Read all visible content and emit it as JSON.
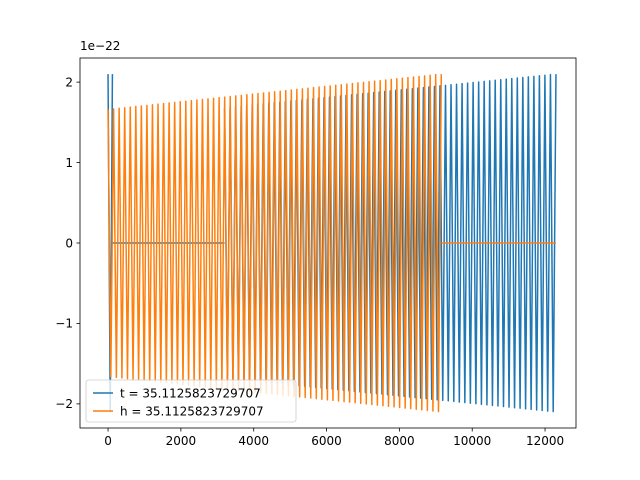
{
  "chart_data": {
    "type": "line",
    "offset_label": "1e−22",
    "xlim": [
      -770,
      12850
    ],
    "ylim": [
      -2.3,
      2.3
    ],
    "x_ticks": [
      0,
      2000,
      4000,
      6000,
      8000,
      10000,
      12000
    ],
    "x_tick_labels": [
      "0",
      "2000",
      "4000",
      "6000",
      "8000",
      "10000",
      "12000"
    ],
    "y_ticks": [
      -2,
      -1,
      0,
      1,
      2
    ],
    "y_tick_labels": [
      "−2",
      "−1",
      "0",
      "1",
      "2"
    ],
    "legend_position": "lower-left",
    "series": [
      {
        "name": "t = 35.1125823729707",
        "color": "#1f77b4",
        "segments": [
          {
            "kind": "oscillation",
            "x_start": 0,
            "x_end": 120,
            "amp_start": 2.1,
            "amp_end": 2.1,
            "cycles": 1
          },
          {
            "kind": "flat",
            "x_start": 120,
            "x_end": 3200,
            "value": 0
          },
          {
            "kind": "oscillation",
            "x_start": 3200,
            "x_end": 12300,
            "amp_start": 1.68,
            "amp_end": 2.1,
            "cycles": 60
          }
        ]
      },
      {
        "name": "h = 35.1125823729707",
        "color": "#ff7f0e",
        "segments": [
          {
            "kind": "oscillation",
            "x_start": 0,
            "x_end": 9150,
            "amp_start": 1.66,
            "amp_end": 2.1,
            "cycles": 60
          },
          {
            "kind": "flat",
            "x_start": 9150,
            "x_end": 12300,
            "value": 0
          }
        ]
      }
    ]
  }
}
